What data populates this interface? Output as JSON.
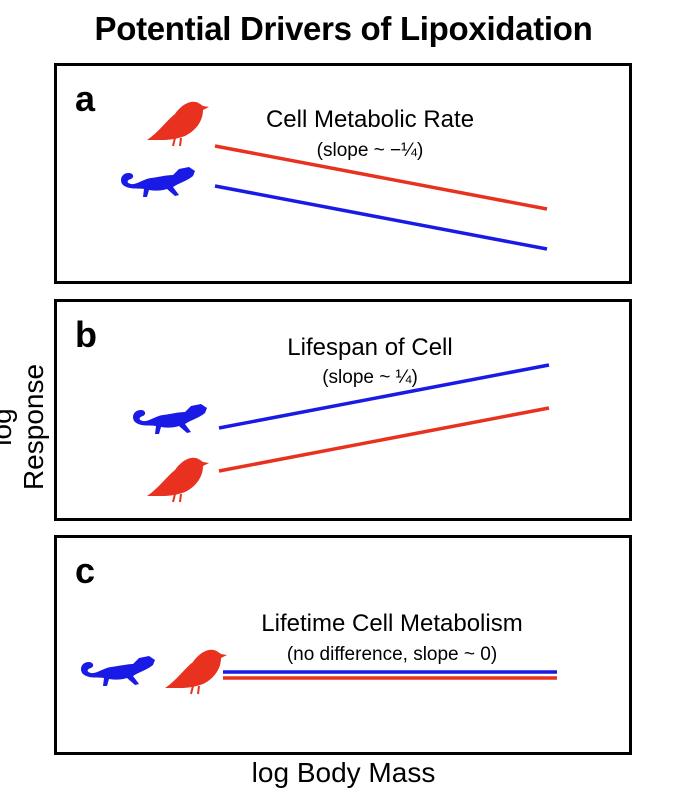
{
  "title": "Potential Drivers of Lipoxidation",
  "y_axis_label": "log Response",
  "x_axis_label": "log Body Mass",
  "colors": {
    "bird": "#e8321f",
    "lizard": "#1a1ae6"
  },
  "panels": [
    {
      "letter": "a",
      "title": "Cell Metabolic Rate",
      "subtitle": "(slope ~ −¼)",
      "lines": [
        {
          "animal": "bird",
          "slope": "negative"
        },
        {
          "animal": "lizard",
          "slope": "negative"
        }
      ]
    },
    {
      "letter": "b",
      "title": "Lifespan of Cell",
      "subtitle": "(slope ~ ¼)",
      "lines": [
        {
          "animal": "lizard",
          "slope": "positive"
        },
        {
          "animal": "bird",
          "slope": "positive"
        }
      ]
    },
    {
      "letter": "c",
      "title": "Lifetime Cell Metabolism",
      "subtitle": "(no difference, slope ~ 0)",
      "lines": [
        {
          "animal": "lizard",
          "slope": "zero"
        },
        {
          "animal": "bird",
          "slope": "zero"
        }
      ]
    }
  ],
  "icons": [
    "bird-icon",
    "lizard-icon"
  ]
}
